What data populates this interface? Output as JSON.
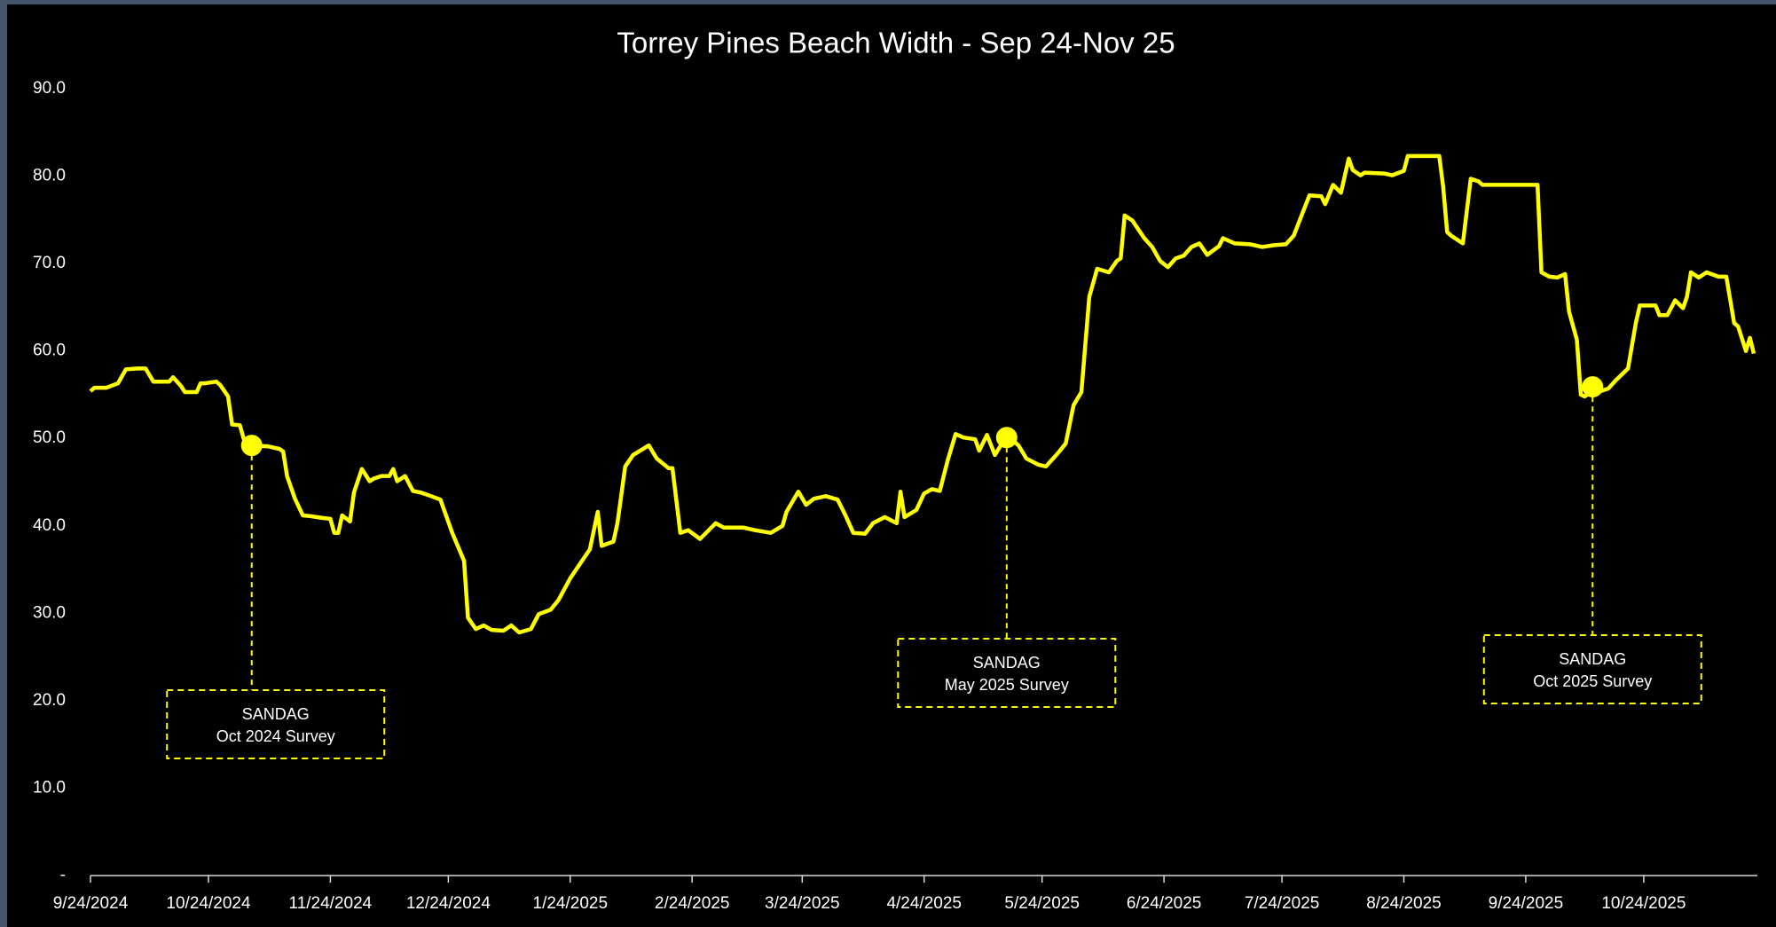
{
  "chart_data": {
    "type": "line",
    "title": "Torrey Pines Beach Width - Sep 24-Nov 25",
    "xlim": [
      "9/24/2024",
      "11/21/2025"
    ],
    "xticks": [
      "9/24/2024",
      "10/24/2024",
      "11/24/2024",
      "12/24/2024",
      "1/24/2025",
      "2/24/2025",
      "3/24/2025",
      "4/24/2025",
      "5/24/2025",
      "6/24/2025",
      "7/24/2025",
      "8/24/2025",
      "9/24/2025",
      "10/24/2025"
    ],
    "ylim": [
      0,
      90
    ],
    "yticks": [
      {
        "value": 0,
        "label": "-"
      },
      {
        "value": 10,
        "label": "10.0"
      },
      {
        "value": 20,
        "label": "20.0"
      },
      {
        "value": 30,
        "label": "30.0"
      },
      {
        "value": 40,
        "label": "40.0"
      },
      {
        "value": 50,
        "label": "50.0"
      },
      {
        "value": 60,
        "label": "60.0"
      },
      {
        "value": 70,
        "label": "70.0"
      },
      {
        "value": 80,
        "label": "80.0"
      },
      {
        "value": 90,
        "label": "90.0"
      }
    ],
    "grid": false,
    "series": [
      {
        "color": "#ffff00",
        "x": [
          "9/24/2024",
          "9/25/2024",
          "9/28/2024",
          "10/1/2024",
          "10/3/2024",
          "10/6/2024",
          "10/8/2024",
          "10/10/2024",
          "10/14/2024",
          "10/15/2024",
          "10/17/2024",
          "10/18/2024",
          "10/21/2024",
          "10/22/2024",
          "10/23/2024",
          "10/26/2024",
          "10/27/2024",
          "10/29/2024",
          "10/30/2024",
          "11/1/2024",
          "11/2/2024",
          "11/4/2024",
          "11/8/2024",
          "11/11/2024",
          "11/12/2024",
          "11/13/2024",
          "11/15/2024",
          "11/17/2024",
          "11/19/2024",
          "11/22/2024",
          "11/24/2024",
          "11/25/2024",
          "11/26/2024",
          "11/27/2024",
          "11/29/2024",
          "11/30/2024",
          "12/2/2024",
          "12/4/2024",
          "12/5/2024",
          "12/7/2024",
          "12/9/2024",
          "12/10/2024",
          "12/11/2024",
          "12/13/2024",
          "12/15/2024",
          "12/17/2024",
          "12/19/2024",
          "12/22/2024",
          "12/25/2024",
          "12/28/2024",
          "12/29/2024",
          "12/31/2024",
          "1/2/2025",
          "1/4/2025",
          "1/7/2025",
          "1/9/2025",
          "1/11/2025",
          "1/14/2025",
          "1/16/2025",
          "1/19/2025",
          "1/21/2025",
          "1/24/2025",
          "1/27/2025",
          "1/29/2025",
          "1/31/2025",
          "2/1/2025",
          "2/4/2025",
          "2/5/2025",
          "2/7/2025",
          "2/9/2025",
          "2/13/2025",
          "2/15/2025",
          "2/18/2025",
          "2/19/2025",
          "2/21/2025",
          "2/23/2025",
          "2/26/2025",
          "3/2/2025",
          "3/4/2025",
          "3/9/2025",
          "3/12/2025",
          "3/16/2025",
          "3/19/2025",
          "3/20/2025",
          "3/23/2025",
          "3/25/2025",
          "3/27/2025",
          "3/30/2025",
          "4/2/2025",
          "4/4/2025",
          "4/6/2025",
          "4/9/2025",
          "4/11/2025",
          "4/14/2025",
          "4/17/2025",
          "4/18/2025",
          "4/19/2025",
          "4/22/2025",
          "4/24/2025",
          "4/26/2025",
          "4/28/2025",
          "4/30/2025",
          "5/2/2025",
          "5/4/2025",
          "5/7/2025",
          "5/8/2025",
          "5/10/2025",
          "5/12/2025",
          "5/15/2025",
          "5/17/2025",
          "5/18/2025",
          "5/20/2025",
          "5/23/2025",
          "5/25/2025",
          "5/28/2025",
          "5/30/2025",
          "6/1/2025",
          "6/3/2025",
          "6/5/2025",
          "6/7/2025",
          "6/10/2025",
          "6/12/2025",
          "6/13/2025",
          "6/14/2025",
          "6/16/2025",
          "6/19/2025",
          "6/21/2025",
          "6/23/2025",
          "6/25/2025",
          "6/27/2025",
          "6/29/2025",
          "7/1/2025",
          "7/3/2025",
          "7/5/2025",
          "7/8/2025",
          "7/9/2025",
          "7/12/2025",
          "7/16/2025",
          "7/19/2025",
          "7/22/2025",
          "7/25/2025",
          "7/27/2025",
          "7/29/2025",
          "7/31/2025",
          "8/3/2025",
          "8/4/2025",
          "8/6/2025",
          "8/8/2025",
          "8/10/2025",
          "8/11/2025",
          "8/13/2025",
          "8/14/2025",
          "8/19/2025",
          "8/21/2025",
          "8/24/2025",
          "8/25/2025",
          "9/2/2025",
          "9/3/2025",
          "9/4/2025",
          "9/5/2025",
          "9/8/2025",
          "9/10/2025",
          "9/12/2025",
          "9/13/2025",
          "9/27/2025",
          "9/28/2025",
          "9/30/2025",
          "10/2/2025",
          "10/4/2025",
          "10/5/2025",
          "10/7/2025",
          "10/8/2025",
          "10/9/2025",
          "10/11/2025",
          "10/13/2025",
          "10/15/2025",
          "10/17/2025",
          "10/20/2025",
          "10/22/2025",
          "10/23/2025",
          "10/27/2025",
          "10/28/2025",
          "10/30/2025",
          "11/1/2025",
          "11/3/2025",
          "11/4/2025",
          "11/5/2025",
          "11/7/2025",
          "11/9/2025",
          "11/12/2025",
          "11/14/2025",
          "11/16/2025",
          "11/17/2025",
          "11/19/2025",
          "11/20/2025",
          "11/21/2025"
        ],
        "values": [
          55.4,
          55.8,
          55.8,
          56.3,
          57.9,
          58,
          58,
          56.5,
          56.5,
          57,
          56,
          55.3,
          55.3,
          56.3,
          56.3,
          56.5,
          56.1,
          54.8,
          51.6,
          51.5,
          49.9,
          49.2,
          49.1,
          48.8,
          48.5,
          45.7,
          43.1,
          41.2,
          41.1,
          40.9,
          40.8,
          39.2,
          39.2,
          41.2,
          40.5,
          43.8,
          46.5,
          45.1,
          45.4,
          45.7,
          45.7,
          46.5,
          45.1,
          45.7,
          44,
          43.8,
          43.5,
          43,
          39.2,
          36,
          29.5,
          28.2,
          28.6,
          28.1,
          28,
          28.6,
          27.8,
          28.2,
          29.9,
          30.4,
          31.5,
          34,
          36,
          37.3,
          41.6,
          37.7,
          38.2,
          40.3,
          46.8,
          48.1,
          49.2,
          47.7,
          46.6,
          46.6,
          39.2,
          39.5,
          38.5,
          40.3,
          39.8,
          39.8,
          39.5,
          39.2,
          40,
          41.6,
          43.9,
          42.4,
          43.1,
          43.4,
          43,
          41.2,
          39.2,
          39.1,
          40.3,
          41,
          40.3,
          43.9,
          41,
          41.8,
          43.7,
          44.2,
          44,
          47.5,
          50.5,
          50.1,
          49.9,
          48.6,
          50.4,
          48.1,
          50.3,
          49.6,
          49.2,
          47.7,
          47,
          46.8,
          48.3,
          49.4,
          53.8,
          55.3,
          66.2,
          69.4,
          69,
          70.3,
          70.6,
          75.5,
          74.9,
          72.9,
          71.9,
          70.3,
          69.6,
          70.6,
          70.9,
          71.9,
          72.3,
          71,
          72,
          72.9,
          72.3,
          72.2,
          71.9,
          72.1,
          72.2,
          73.2,
          75.5,
          77.8,
          77.7,
          76.8,
          79,
          78.1,
          82,
          80.7,
          80.1,
          80.4,
          80.3,
          80.1,
          80.6,
          82.3,
          82.3,
          78.8,
          73.6,
          73.2,
          72.3,
          79.7,
          79.4,
          79,
          79,
          69,
          68.5,
          68.4,
          68.8,
          64.5,
          61.3,
          55,
          54.8,
          55.4,
          55.4,
          55.7,
          56.7,
          58,
          63.2,
          65.2,
          65.2,
          64.1,
          64.1,
          65.8,
          64.9,
          66.2,
          69,
          68.4,
          69,
          68.5,
          68.5,
          63.2,
          62.8,
          60,
          61.5,
          59.7
        ]
      }
    ],
    "annotations": [
      {
        "text": [
          "SANDAG",
          "Oct 2024 Survey"
        ],
        "x": "11/4/2024",
        "y": 49.2
      },
      {
        "text": [
          "SANDAG",
          "May 2025 Survey"
        ],
        "x": "5/15/2025",
        "y": 50.1
      },
      {
        "text": [
          "SANDAG",
          "Oct 2025  Survey"
        ],
        "x": "10/11/2025",
        "y": 55.9
      }
    ]
  }
}
